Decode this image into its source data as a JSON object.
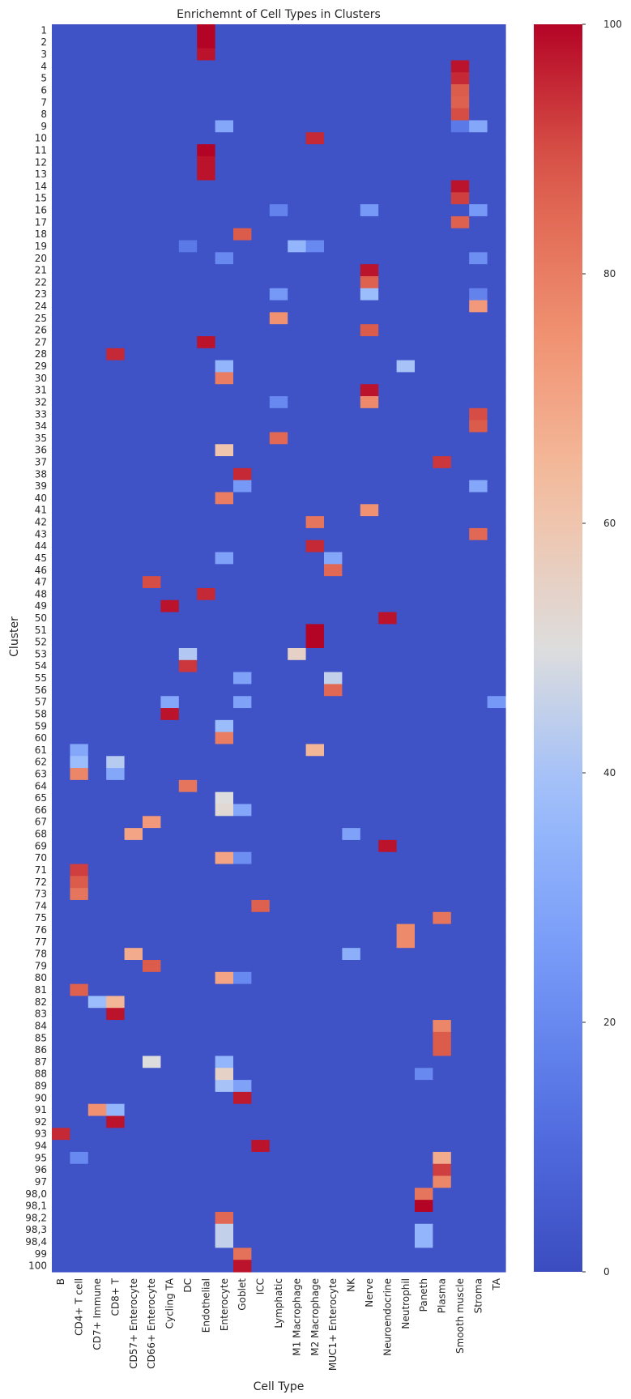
{
  "chart_data": {
    "type": "heatmap",
    "title": "Enrichemnt of Cell Types in Clusters",
    "xlabel": "Cell Type",
    "ylabel": "Cluster",
    "columns": [
      "B",
      "CD4+ T cell",
      "CD7+ Immune",
      "CD8+ T",
      "CD57+ Enterocyte",
      "CD66+ Enterocyte",
      "Cycling TA",
      "DC",
      "Endothelial",
      "Enterocyte",
      "Goblet",
      "ICC",
      "Lymphatic",
      "M1 Macrophage",
      "M2 Macrophage",
      "MUC1+ Enterocyte",
      "NK",
      "Nerve",
      "Neuroendocrine",
      "Neutrophil",
      "Paneth",
      "Plasma",
      "Smooth muscle",
      "Stroma",
      "TA"
    ],
    "rows": [
      "1",
      "2",
      "3",
      "4",
      "5",
      "6",
      "7",
      "8",
      "9",
      "10",
      "11",
      "12",
      "13",
      "14",
      "15",
      "16",
      "17",
      "18",
      "19",
      "20",
      "21",
      "22",
      "23",
      "24",
      "25",
      "26",
      "27",
      "28",
      "29",
      "30",
      "31",
      "32",
      "33",
      "34",
      "35",
      "36",
      "37",
      "38",
      "39",
      "40",
      "41",
      "42",
      "43",
      "44",
      "45",
      "46",
      "47",
      "48",
      "49",
      "50",
      "51",
      "52",
      "53",
      "54",
      "55",
      "56",
      "57",
      "58",
      "59",
      "60",
      "61",
      "62",
      "63",
      "64",
      "65",
      "66",
      "67",
      "68",
      "69",
      "70",
      "71",
      "72",
      "73",
      "74",
      "75",
      "76",
      "77",
      "78",
      "79",
      "80",
      "81",
      "82",
      "83",
      "84",
      "85",
      "86",
      "87",
      "88",
      "89",
      "90",
      "91",
      "92",
      "93",
      "94",
      "95",
      "96",
      "97",
      "98,0",
      "98,1",
      "98,2",
      "98,3",
      "98,4",
      "99",
      "100"
    ],
    "background_value": 2,
    "cells": [
      [
        "1",
        "Endothelial",
        100
      ],
      [
        "2",
        "Endothelial",
        100
      ],
      [
        "3",
        "Endothelial",
        98
      ],
      [
        "4",
        "Smooth muscle",
        98
      ],
      [
        "5",
        "Smooth muscle",
        95
      ],
      [
        "6",
        "Smooth muscle",
        88
      ],
      [
        "7",
        "Smooth muscle",
        87
      ],
      [
        "8",
        "Smooth muscle",
        90
      ],
      [
        "9",
        "Enterocyte",
        30
      ],
      [
        "9",
        "Smooth muscle",
        15
      ],
      [
        "9",
        "Stroma",
        30
      ],
      [
        "10",
        "M2 Macrophage",
        95
      ],
      [
        "11",
        "Endothelial",
        100
      ],
      [
        "12",
        "Endothelial",
        98
      ],
      [
        "13",
        "Endothelial",
        98
      ],
      [
        "14",
        "Smooth muscle",
        98
      ],
      [
        "15",
        "Smooth muscle",
        92
      ],
      [
        "16",
        "Lymphatic",
        18
      ],
      [
        "16",
        "Nerve",
        25
      ],
      [
        "16",
        "Stroma",
        25
      ],
      [
        "17",
        "Smooth muscle",
        87
      ],
      [
        "18",
        "Goblet",
        88
      ],
      [
        "19",
        "DC",
        15
      ],
      [
        "19",
        "M1 Macrophage",
        35
      ],
      [
        "19",
        "M2 Macrophage",
        20
      ],
      [
        "20",
        "Enterocyte",
        20
      ],
      [
        "20",
        "Stroma",
        22
      ],
      [
        "21",
        "Nerve",
        98
      ],
      [
        "22",
        "Nerve",
        87
      ],
      [
        "23",
        "Nerve",
        38
      ],
      [
        "23",
        "Lymphatic",
        25
      ],
      [
        "23",
        "Stroma",
        18
      ],
      [
        "24",
        "Stroma",
        73
      ],
      [
        "25",
        "Lymphatic",
        75
      ],
      [
        "26",
        "Nerve",
        88
      ],
      [
        "27",
        "Endothelial",
        98
      ],
      [
        "28",
        "CD8+ T",
        95
      ],
      [
        "29",
        "Enterocyte",
        35
      ],
      [
        "29",
        "Neutrophil",
        40
      ],
      [
        "30",
        "Enterocyte",
        80
      ],
      [
        "31",
        "Nerve",
        98
      ],
      [
        "32",
        "Nerve",
        77
      ],
      [
        "32",
        "Lymphatic",
        20
      ],
      [
        "33",
        "Stroma",
        90
      ],
      [
        "34",
        "Stroma",
        88
      ],
      [
        "35",
        "Lymphatic",
        85
      ],
      [
        "36",
        "Enterocyte",
        60
      ],
      [
        "37",
        "Plasma",
        93
      ],
      [
        "38",
        "Goblet",
        95
      ],
      [
        "39",
        "Stroma",
        30
      ],
      [
        "39",
        "Goblet",
        25
      ],
      [
        "40",
        "Enterocyte",
        80
      ],
      [
        "41",
        "Nerve",
        75
      ],
      [
        "42",
        "M2 Macrophage",
        82
      ],
      [
        "43",
        "Stroma",
        85
      ],
      [
        "44",
        "M2 Macrophage",
        95
      ],
      [
        "45",
        "MUC1+ Enterocyte",
        30
      ],
      [
        "45",
        "Enterocyte",
        28
      ],
      [
        "46",
        "MUC1+ Enterocyte",
        85
      ],
      [
        "47",
        "CD66+ Enterocyte",
        90
      ],
      [
        "48",
        "Endothelial",
        95
      ],
      [
        "49",
        "Cycling TA",
        98
      ],
      [
        "50",
        "Neuroendocrine",
        98
      ],
      [
        "51",
        "M2 Macrophage",
        100
      ],
      [
        "52",
        "M2 Macrophage",
        100
      ],
      [
        "53",
        "M1 Macrophage",
        55
      ],
      [
        "53",
        "DC",
        42
      ],
      [
        "54",
        "DC",
        93
      ],
      [
        "55",
        "MUC1+ Enterocyte",
        45
      ],
      [
        "55",
        "Goblet",
        28
      ],
      [
        "56",
        "MUC1+ Enterocyte",
        85
      ],
      [
        "57",
        "Goblet",
        28
      ],
      [
        "57",
        "Cycling TA",
        30
      ],
      [
        "57",
        "TA",
        25
      ],
      [
        "58",
        "Cycling TA",
        98
      ],
      [
        "59",
        "Enterocyte",
        38
      ],
      [
        "60",
        "Enterocyte",
        80
      ],
      [
        "61",
        "CD4+ T cell",
        30
      ],
      [
        "61",
        "M2 Macrophage",
        65
      ],
      [
        "62",
        "CD4+ T cell",
        38
      ],
      [
        "62",
        "CD8+ T",
        43
      ],
      [
        "63",
        "CD4+ T cell",
        78
      ],
      [
        "63",
        "CD8+ T",
        30
      ],
      [
        "64",
        "DC",
        82
      ],
      [
        "65",
        "Enterocyte",
        50
      ],
      [
        "66",
        "Enterocyte",
        52
      ],
      [
        "66",
        "Goblet",
        30
      ],
      [
        "67",
        "CD66+ Enterocyte",
        73
      ],
      [
        "68",
        "CD57+ Enterocyte",
        70
      ],
      [
        "68",
        "NK",
        28
      ],
      [
        "69",
        "Neuroendocrine",
        98
      ],
      [
        "70",
        "Enterocyte",
        70
      ],
      [
        "70",
        "Goblet",
        22
      ],
      [
        "71",
        "CD4+ T cell",
        92
      ],
      [
        "72",
        "CD4+ T cell",
        88
      ],
      [
        "73",
        "CD4+ T cell",
        82
      ],
      [
        "74",
        "ICC",
        87
      ],
      [
        "75",
        "Plasma",
        82
      ],
      [
        "76",
        "Neutrophil",
        77
      ],
      [
        "77",
        "Neutrophil",
        77
      ],
      [
        "78",
        "CD57+ Enterocyte",
        68
      ],
      [
        "78",
        "NK",
        33
      ],
      [
        "79",
        "CD66+ Enterocyte",
        88
      ],
      [
        "80",
        "Enterocyte",
        70
      ],
      [
        "80",
        "Goblet",
        20
      ],
      [
        "81",
        "CD4+ T cell",
        87
      ],
      [
        "82",
        "CD7+ Immune",
        38
      ],
      [
        "82",
        "CD8+ T",
        65
      ],
      [
        "83",
        "CD8+ T",
        98
      ],
      [
        "84",
        "Plasma",
        78
      ],
      [
        "85",
        "Plasma",
        88
      ],
      [
        "86",
        "Plasma",
        88
      ],
      [
        "87",
        "CD66+ Enterocyte",
        50
      ],
      [
        "87",
        "Enterocyte",
        35
      ],
      [
        "88",
        "Enterocyte",
        55
      ],
      [
        "88",
        "Paneth",
        20
      ],
      [
        "89",
        "Enterocyte",
        40
      ],
      [
        "89",
        "Goblet",
        28
      ],
      [
        "90",
        "Goblet",
        97
      ],
      [
        "91",
        "CD7+ Immune",
        75
      ],
      [
        "91",
        "CD8+ T",
        35
      ],
      [
        "92",
        "CD8+ T",
        98
      ],
      [
        "93",
        "B",
        95
      ],
      [
        "94",
        "ICC",
        98
      ],
      [
        "95",
        "CD4+ T cell",
        20
      ],
      [
        "95",
        "Plasma",
        68
      ],
      [
        "96",
        "Plasma",
        92
      ],
      [
        "97",
        "Plasma",
        78
      ],
      [
        "98,0",
        "Paneth",
        82
      ],
      [
        "98,1",
        "Paneth",
        100
      ],
      [
        "98,2",
        "Enterocyte",
        85
      ],
      [
        "98,3",
        "Enterocyte",
        45
      ],
      [
        "98,3",
        "Paneth",
        35
      ],
      [
        "98,4",
        "Enterocyte",
        45
      ],
      [
        "98,4",
        "Paneth",
        35
      ],
      [
        "99",
        "Goblet",
        83
      ],
      [
        "100",
        "Goblet",
        98
      ]
    ],
    "colorbar": {
      "min": 0,
      "max": 100,
      "ticks": [
        0,
        20,
        40,
        60,
        80,
        100
      ],
      "colormap": "coolwarm"
    },
    "colors": {
      "low": "#3b4cc0",
      "mid": "#dddddd",
      "high": "#b40426"
    }
  }
}
